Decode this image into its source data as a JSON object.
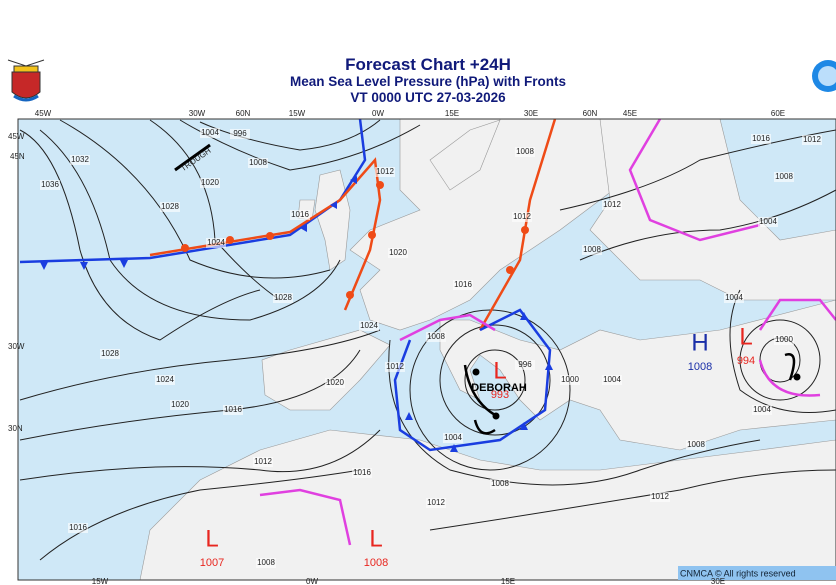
{
  "header": {
    "title": "Forecast Chart +24H",
    "subtitle": "Mean Sea Level Pressure (hPa) with Fronts",
    "valid_time": "VT 0000 UTC 27-03-2026"
  },
  "grid_labels": [
    "45W",
    "30W",
    "60N",
    "15W",
    "0W",
    "15E",
    "30E",
    "60N",
    "45E",
    "60E",
    "45W",
    "45N",
    "30W",
    "30N",
    "15W",
    "0W",
    "15E",
    "30E"
  ],
  "isobar_labels": [
    1032,
    1036,
    1028,
    1024,
    1020,
    1008,
    1004,
    996,
    1016,
    1028,
    1028,
    1024,
    1020,
    1016,
    1012,
    1016,
    1016,
    1008,
    1024,
    1020,
    1020,
    1012,
    1012,
    1016,
    1012,
    1008,
    1008,
    996,
    1000,
    1004,
    1004,
    1008,
    1012,
    1012,
    1008,
    1016,
    1012,
    1008,
    1004,
    1004,
    1000,
    1004,
    1008,
    1012
  ],
  "trough_label": "TROUGH",
  "pressure_centers": [
    {
      "letter": "H",
      "value": 1008
    },
    {
      "letter": "L",
      "value": 994
    },
    {
      "letter": "L",
      "value": 993
    },
    {
      "letter": "L",
      "value": 1007
    },
    {
      "letter": "L",
      "value": 1008
    }
  ],
  "storm_name": "DEBORAH",
  "footer": {
    "copyright": "CNMCA © All rights reserved"
  }
}
